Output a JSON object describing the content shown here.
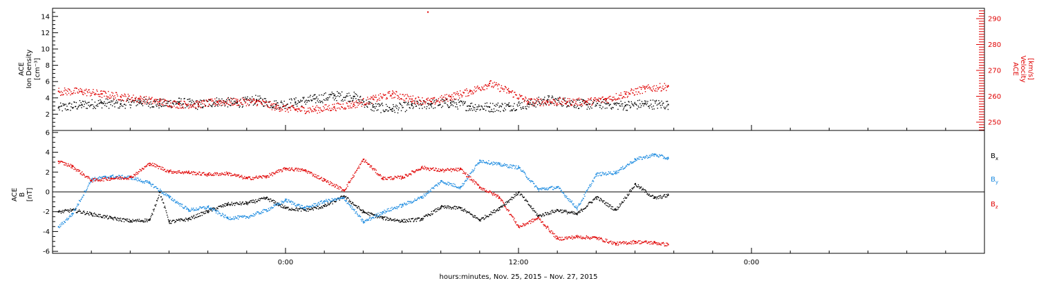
{
  "chart_data": [
    {
      "type": "scatter",
      "title": "",
      "ylabel_lines": [
        "ACE",
        "Ion Density",
        "[cm⁻³]"
      ],
      "y2label_lines": [
        "ACE",
        "Velocity",
        "[km/s]"
      ],
      "ylim": [
        0,
        15
      ],
      "y2lim": [
        246.8,
        294
      ],
      "yticks": [
        2,
        4,
        6,
        8,
        10,
        12,
        14
      ],
      "yticks_labels": [
        "2",
        "4",
        "6",
        "8",
        "10",
        "12",
        "14"
      ],
      "y2ticks": [
        250,
        260,
        270,
        280,
        290
      ],
      "y2ticks_labels": [
        "250",
        "260",
        "270",
        "280",
        "290"
      ],
      "xlim_hours": [
        -12,
        36
      ],
      "series": [
        {
          "axis": "left",
          "color": "#000000",
          "x": [
            -11.7,
            -10.5,
            -9.5,
            -8.5,
            -7.5,
            -6.5,
            -5.5,
            -4.5,
            -3.5,
            -2.5,
            -1.5,
            -0.5,
            0.5,
            1.5,
            2.5,
            3.5,
            4.5,
            5.5,
            6.5,
            7.5,
            8.5,
            9.5,
            10.5,
            11.5,
            12.5,
            13.5,
            14.5,
            15.5,
            16.5,
            17.5,
            18.5,
            19.7
          ],
          "y": [
            2.8,
            3.2,
            3.4,
            3.3,
            3.6,
            3.3,
            3.5,
            3.2,
            3.6,
            3.4,
            3.8,
            3.2,
            3.5,
            3.9,
            4.3,
            4.2,
            2.9,
            2.7,
            3.1,
            3.3,
            3.4,
            3.0,
            2.9,
            3.0,
            3.3,
            3.8,
            3.5,
            3.2,
            3.3,
            3.1,
            3.3,
            3.2
          ]
        },
        {
          "axis": "right",
          "color": "#e00000",
          "x": [
            -11.7,
            -10.5,
            -9.5,
            -8.5,
            -7.5,
            -6.5,
            -5.5,
            -4.5,
            -3.5,
            -2.5,
            -1.5,
            -0.5,
            0.5,
            1.5,
            2.5,
            3.5,
            4.5,
            5.5,
            6.5,
            7.5,
            8.5,
            9.5,
            10.5,
            11.5,
            12.5,
            13.5,
            14.5,
            15.5,
            16.5,
            17.5,
            18.5,
            19.7
          ],
          "y": [
            262,
            262,
            261,
            260,
            259,
            258,
            257,
            257,
            258,
            258,
            258,
            256,
            255,
            255,
            256,
            257,
            259,
            261,
            259,
            258,
            260,
            262,
            265,
            262,
            258,
            258,
            258,
            258,
            259,
            261,
            263,
            264
          ]
        }
      ]
    },
    {
      "type": "scatter",
      "title": "",
      "ylabel_lines": [
        "ACE",
        "B",
        "[nT]"
      ],
      "ylim": [
        -6.2,
        6.2
      ],
      "yticks": [
        -6,
        -4,
        -2,
        0,
        2,
        4,
        6
      ],
      "yticks_labels": [
        "-6",
        "-4",
        "-2",
        "0",
        "2",
        "4",
        "6"
      ],
      "zero_line": true,
      "xlim_hours": [
        -12,
        36
      ],
      "xticks_labels": [
        {
          "hour": 0,
          "label": "0:00"
        },
        {
          "hour": 12,
          "label": "12:00"
        },
        {
          "hour": 24,
          "label": "0:00"
        }
      ],
      "xlabel": "hours:minutes, Nov. 25, 2015 – Nov. 27, 2015",
      "legend": [
        {
          "label": "B",
          "sub": "x",
          "color": "#000000"
        },
        {
          "label": "B",
          "sub": "y",
          "color": "#1a8ae0"
        },
        {
          "label": "B",
          "sub": "z",
          "color": "#e00000"
        }
      ],
      "series": [
        {
          "name": "Bx",
          "color": "#000000",
          "x": [
            -11.7,
            -11,
            -10,
            -9,
            -8,
            -7,
            -6.5,
            -6,
            -5,
            -4,
            -3,
            -2,
            -1,
            0,
            1,
            2,
            3,
            4,
            5,
            6,
            7,
            8,
            9,
            10,
            11,
            12,
            13,
            14,
            15,
            16,
            17,
            18,
            19,
            19.7
          ],
          "y": [
            -2.0,
            -1.8,
            -2.2,
            -2.6,
            -2.9,
            -2.8,
            0.0,
            -3.0,
            -2.7,
            -1.9,
            -1.2,
            -1.1,
            -0.6,
            -1.6,
            -1.8,
            -1.4,
            -0.4,
            -2.0,
            -2.6,
            -2.9,
            -2.7,
            -1.5,
            -1.6,
            -2.8,
            -1.6,
            0.0,
            -2.4,
            -1.8,
            -2.2,
            -0.5,
            -1.8,
            0.8,
            -0.6,
            -0.3
          ]
        },
        {
          "name": "By",
          "color": "#1a8ae0",
          "x": [
            -11.7,
            -11,
            -10,
            -9,
            -8,
            -7,
            -6,
            -5,
            -4,
            -3,
            -2,
            -1,
            0,
            1,
            2,
            3,
            4,
            5,
            6,
            7,
            8,
            9,
            10,
            11,
            12,
            13,
            14,
            15,
            16,
            17,
            18,
            19,
            19.7
          ],
          "y": [
            -3.5,
            -2.2,
            1.3,
            1.6,
            1.5,
            0.9,
            -0.5,
            -1.8,
            -1.5,
            -2.6,
            -2.5,
            -1.8,
            -0.8,
            -1.6,
            -0.9,
            -0.6,
            -3.0,
            -2.0,
            -1.3,
            -0.5,
            1.1,
            0.5,
            3.2,
            2.8,
            2.5,
            0.3,
            0.5,
            -1.6,
            1.8,
            2.0,
            3.3,
            3.8,
            3.4
          ]
        },
        {
          "name": "Bz",
          "color": "#e00000",
          "x": [
            -11.7,
            -11,
            -10,
            -9,
            -8,
            -7,
            -6,
            -5,
            -4,
            -3,
            -2,
            -1,
            0,
            1,
            2,
            3,
            4,
            5,
            6,
            7,
            8,
            9,
            10,
            11,
            12,
            13,
            14,
            15,
            16,
            17,
            18,
            19,
            19.7
          ],
          "y": [
            3.1,
            2.6,
            1.2,
            1.4,
            1.5,
            2.9,
            2.1,
            2.0,
            1.8,
            1.9,
            1.4,
            1.6,
            2.4,
            2.2,
            1.2,
            0.2,
            3.3,
            1.4,
            1.5,
            2.5,
            2.2,
            2.3,
            0.5,
            -0.5,
            -3.5,
            -2.6,
            -4.7,
            -4.5,
            -4.6,
            -5.2,
            -5.0,
            -5.1,
            -5.3
          ]
        }
      ]
    }
  ]
}
